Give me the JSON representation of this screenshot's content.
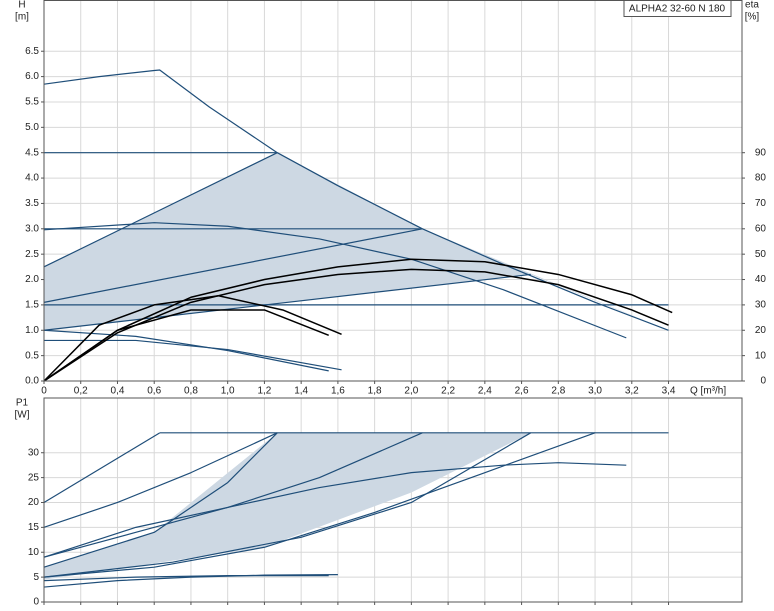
{
  "chart_data": [
    {
      "type": "line",
      "title": "ALPHA2 32-60 N 180",
      "y_label": "H",
      "y_unit": "[m]",
      "y2_label": "eta",
      "y2_unit": "[%]",
      "x_label": "Q [m³/h]",
      "xlim": [
        0,
        3.8
      ],
      "ylim": [
        0,
        7.5
      ],
      "y2lim": [
        0,
        150
      ],
      "grid": true,
      "xticks": [
        0,
        {
          "value": 0.2,
          "label": "0,2"
        },
        {
          "value": 0.4,
          "label": "0,4"
        },
        {
          "value": 0.6,
          "label": "0,6"
        },
        {
          "value": 0.8,
          "label": "0,8"
        },
        {
          "value": 1.0,
          "label": "1,0"
        },
        {
          "value": 1.2,
          "label": "1,2"
        },
        {
          "value": 1.4,
          "label": "1,4"
        },
        {
          "value": 1.6,
          "label": "1,6"
        },
        {
          "value": 1.8,
          "label": "1,8"
        },
        {
          "value": 2.0,
          "label": "2,0"
        },
        {
          "value": 2.2,
          "label": "2,2"
        },
        {
          "value": 2.4,
          "label": "2,4"
        },
        {
          "value": 2.6,
          "label": "2,6"
        },
        {
          "value": 2.8,
          "label": "2,8"
        },
        {
          "value": 3.0,
          "label": "3,0"
        },
        {
          "value": 3.2,
          "label": "3,2"
        },
        {
          "value": 3.4,
          "label": "3,4"
        }
      ],
      "yticks": [
        {
          "value": 0,
          "label": "0.0"
        },
        0.5,
        {
          "value": 1,
          "label": "1.0"
        },
        1.5,
        {
          "value": 2,
          "label": "2.0"
        },
        2.5,
        {
          "value": 3,
          "label": "3.0"
        },
        3.5,
        {
          "value": 4,
          "label": "4.0"
        },
        4.5,
        {
          "value": 5,
          "label": "5.0"
        },
        5.5,
        {
          "value": 6,
          "label": "6.0"
        },
        6.5
      ],
      "y2ticks": [
        0,
        10,
        20,
        30,
        40,
        50,
        60,
        70,
        80,
        90
      ],
      "areas": [
        {
          "color": "#cdd8e3",
          "x": [
            0,
            0,
            1.27,
            2.06,
            3.4,
            2.65
          ],
          "values": [
            1.0,
            2.25,
            4.5,
            3.0,
            1.0,
            2.1
          ]
        }
      ],
      "series": [
        {
          "color": "#1f4e79",
          "x": [
            0,
            0.3,
            0.6,
            0.63,
            0.9,
            1.27,
            1.6,
            2.06,
            2.5,
            3.0,
            3.4
          ],
          "values": [
            5.85,
            6.0,
            6.12,
            6.13,
            5.4,
            4.5,
            3.85,
            3.0,
            2.3,
            1.55,
            1.0
          ]
        },
        {
          "color": "#1f4e79",
          "x": [
            0,
            1.27
          ],
          "values": [
            4.5,
            4.5
          ]
        },
        {
          "color": "#1f4e79",
          "x": [
            0,
            2.06
          ],
          "values": [
            3.0,
            3.0
          ]
        },
        {
          "color": "#1f4e79",
          "x": [
            0,
            3.4
          ],
          "values": [
            1.5,
            1.5
          ]
        },
        {
          "color": "#1f4e79",
          "x": [
            0,
            1.27
          ],
          "values": [
            2.25,
            4.5
          ]
        },
        {
          "color": "#1f4e79",
          "x": [
            0,
            2.06
          ],
          "values": [
            1.55,
            3.0
          ]
        },
        {
          "color": "#1f4e79",
          "x": [
            0,
            2.65
          ],
          "values": [
            1.0,
            2.1
          ]
        },
        {
          "color": "#1f4e79",
          "x": [
            0,
            0.6,
            1.0,
            1.5,
            2.0,
            2.5,
            3.17
          ],
          "values": [
            2.98,
            3.12,
            3.05,
            2.8,
            2.4,
            1.8,
            0.85
          ]
        },
        {
          "color": "#1f4e79",
          "x": [
            0,
            0.5,
            1.0,
            1.62
          ],
          "values": [
            0.8,
            0.8,
            0.62,
            0.22
          ]
        },
        {
          "color": "#1f4e79",
          "x": [
            0,
            0.5,
            1.0,
            1.55
          ],
          "values": [
            1.0,
            0.88,
            0.6,
            0.2
          ]
        },
        {
          "color": "#000000",
          "axis": "y2",
          "x": [
            0,
            0.4,
            0.8,
            1.2,
            1.6,
            2.0,
            2.4,
            2.8,
            3.2,
            3.42
          ],
          "values": [
            0,
            20,
            33,
            40,
            45,
            48,
            47,
            42,
            34,
            27
          ]
        },
        {
          "color": "#000000",
          "axis": "y2",
          "x": [
            0,
            0.4,
            0.8,
            1.2,
            1.6,
            2.0,
            2.4,
            2.8,
            3.2,
            3.4
          ],
          "values": [
            0,
            19,
            31,
            38,
            42,
            44,
            43,
            38,
            28,
            22
          ]
        },
        {
          "color": "#000000",
          "axis": "y2",
          "x": [
            0,
            0.3,
            0.6,
            0.95,
            1.3,
            1.62
          ],
          "values": [
            0,
            22,
            30,
            33.6,
            28,
            18.4
          ]
        },
        {
          "color": "#000000",
          "axis": "y2",
          "x": [
            0,
            0.4,
            0.8,
            1.2,
            1.55
          ],
          "values": [
            0,
            20,
            28,
            28,
            18
          ]
        }
      ]
    },
    {
      "type": "line",
      "y_label": "P1",
      "y_unit": "[W]",
      "xlim": [
        0,
        3.8
      ],
      "ylim": [
        0,
        41
      ],
      "grid": true,
      "xticks": [
        0,
        0.2,
        0.4,
        0.6,
        0.8,
        1,
        1.2,
        1.4,
        1.6,
        1.8,
        2,
        2.2,
        2.4,
        2.6,
        2.8,
        3,
        3.2,
        3.4
      ],
      "yticks": [
        0,
        5,
        10,
        15,
        20,
        25,
        30
      ],
      "areas": [
        {
          "color": "#cdd8e3",
          "x": [
            0,
            0,
            0.6,
            1.27,
            2.65,
            2.0,
            1.2
          ],
          "values": [
            4.5,
            7,
            14,
            34,
            34,
            22,
            11
          ]
        }
      ],
      "series": [
        {
          "color": "#1f4e79",
          "x": [
            0.63,
            3.4
          ],
          "values": [
            34,
            34
          ]
        },
        {
          "color": "#1f4e79",
          "x": [
            0,
            0.63
          ],
          "values": [
            20,
            34
          ]
        },
        {
          "color": "#1f4e79",
          "x": [
            0,
            0.4,
            0.8,
            1.27
          ],
          "values": [
            15,
            20,
            26,
            34
          ]
        },
        {
          "color": "#1f4e79",
          "x": [
            0,
            0.5,
            1.0,
            1.5,
            2.06
          ],
          "values": [
            9,
            14,
            19,
            25,
            34
          ]
        },
        {
          "color": "#1f4e79",
          "x": [
            0,
            0.6,
            1.0,
            1.27
          ],
          "values": [
            7,
            14,
            24,
            34
          ]
        },
        {
          "color": "#1f4e79",
          "x": [
            0,
            0.7,
            1.4,
            2.0,
            2.65
          ],
          "values": [
            5,
            8,
            13,
            20,
            34
          ]
        },
        {
          "color": "#1f4e79",
          "x": [
            0,
            0.6,
            1.2,
            1.8,
            2.4,
            3.0
          ],
          "values": [
            5,
            7,
            11,
            18,
            26,
            34
          ]
        },
        {
          "color": "#1f4e79",
          "x": [
            0,
            0.5,
            1.0,
            1.5,
            2.0,
            2.5,
            2.8,
            3.17
          ],
          "values": [
            9,
            15,
            19,
            23,
            26,
            27.5,
            28,
            27.5
          ]
        },
        {
          "color": "#1f4e79",
          "x": [
            0,
            0.4,
            0.8,
            1.2,
            1.6
          ],
          "values": [
            3,
            4.3,
            5,
            5.4,
            5.5
          ]
        },
        {
          "color": "#1f4e79",
          "x": [
            0,
            0.5,
            1.0,
            1.55
          ],
          "values": [
            4.3,
            5,
            5.3,
            5.3
          ]
        }
      ]
    }
  ]
}
